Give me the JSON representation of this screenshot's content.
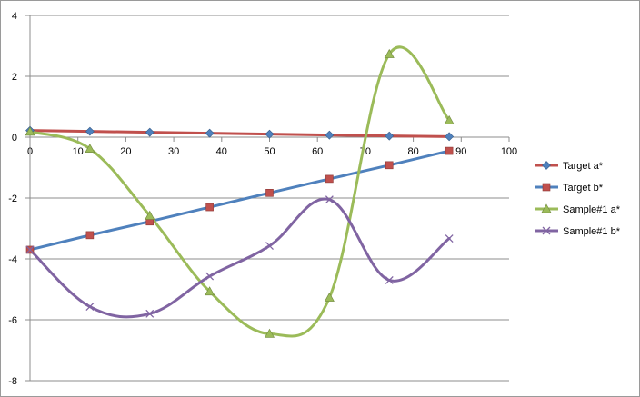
{
  "chart_data": {
    "type": "line",
    "title": "",
    "xlabel": "",
    "ylabel": "",
    "xlim": [
      0,
      100
    ],
    "ylim": [
      -8,
      4
    ],
    "x_ticks": [
      0,
      10,
      20,
      30,
      40,
      50,
      60,
      70,
      80,
      90,
      100
    ],
    "y_ticks": [
      4,
      2,
      0,
      -2,
      -4,
      -6,
      -8
    ],
    "grid": "horizontal",
    "legend_position": "right",
    "series": [
      {
        "name": "Target a*",
        "color": "#c0504d",
        "marker": "diamond",
        "marker_color": "#4f81bd",
        "smooth": false,
        "x": [
          0,
          12.5,
          25,
          37.5,
          50,
          62.5,
          75,
          87.5
        ],
        "y": [
          0.22,
          0.19,
          0.16,
          0.13,
          0.1,
          0.07,
          0.04,
          0.02
        ]
      },
      {
        "name": "Target b*",
        "color": "#4f81bd",
        "marker": "square",
        "marker_color": "#c0504d",
        "smooth": false,
        "x": [
          0,
          12.5,
          25,
          37.5,
          50,
          62.5,
          75,
          87.5
        ],
        "y": [
          -3.7,
          -3.22,
          -2.77,
          -2.3,
          -1.83,
          -1.37,
          -0.92,
          -0.45
        ]
      },
      {
        "name": "Sample#1 a*",
        "color": "#9bbb59",
        "marker": "triangle",
        "marker_color": "#9bbb59",
        "smooth": true,
        "x": [
          0,
          12.5,
          25,
          37.5,
          50,
          62.5,
          75,
          87.5
        ],
        "y": [
          0.18,
          -0.38,
          -2.58,
          -5.07,
          -6.46,
          -5.27,
          2.73,
          0.55
        ]
      },
      {
        "name": "Sample#1 b*",
        "color": "#8064a2",
        "marker": "x",
        "marker_color": "#8064a2",
        "smooth": true,
        "x": [
          0,
          12.5,
          25,
          37.5,
          50,
          62.5,
          75,
          87.5
        ],
        "y": [
          -3.7,
          -5.57,
          -5.8,
          -4.57,
          -3.57,
          -2.05,
          -4.7,
          -3.33
        ]
      }
    ]
  }
}
